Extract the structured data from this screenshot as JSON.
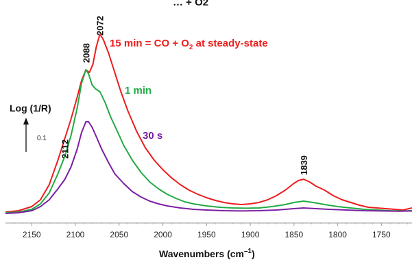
{
  "chart_data": {
    "type": "line",
    "title_partial": "… + O2",
    "xlabel": "Wavenumbers (cm",
    "xlabel_sup": "–1",
    "xlabel_close": ")",
    "ylabel": "Log (1/R)",
    "scalebar_label": "0.1",
    "xlim": [
      2180,
      1715
    ],
    "x_reversed": true,
    "grid": false,
    "ticks": [
      2150,
      2100,
      2050,
      2000,
      1950,
      1900,
      1850,
      1800,
      1750
    ],
    "tick_labels": [
      "2150",
      "2100",
      "2050",
      "2000",
      "1950",
      "1900",
      "1850",
      "1800",
      "1750"
    ],
    "series": [
      {
        "name": "15 min = CO + O2 at steady-state",
        "color": "#ee1c1c",
        "points": [
          [
            2180,
            0.04
          ],
          [
            2165,
            0.05
          ],
          [
            2150,
            0.08
          ],
          [
            2140,
            0.13
          ],
          [
            2130,
            0.24
          ],
          [
            2120,
            0.42
          ],
          [
            2112,
            0.58
          ],
          [
            2105,
            0.72
          ],
          [
            2098,
            0.88
          ],
          [
            2093,
            1.0
          ],
          [
            2088,
            1.08
          ],
          [
            2084,
            1.06
          ],
          [
            2080,
            1.12
          ],
          [
            2076,
            1.25
          ],
          [
            2072,
            1.34
          ],
          [
            2068,
            1.3
          ],
          [
            2062,
            1.2
          ],
          [
            2055,
            1.06
          ],
          [
            2048,
            0.92
          ],
          [
            2040,
            0.78
          ],
          [
            2030,
            0.63
          ],
          [
            2020,
            0.51
          ],
          [
            2010,
            0.42
          ],
          [
            2000,
            0.35
          ],
          [
            1990,
            0.29
          ],
          [
            1980,
            0.24
          ],
          [
            1970,
            0.2
          ],
          [
            1960,
            0.17
          ],
          [
            1950,
            0.145
          ],
          [
            1940,
            0.125
          ],
          [
            1930,
            0.11
          ],
          [
            1920,
            0.1
          ],
          [
            1910,
            0.095
          ],
          [
            1900,
            0.1
          ],
          [
            1890,
            0.11
          ],
          [
            1880,
            0.13
          ],
          [
            1870,
            0.16
          ],
          [
            1860,
            0.2
          ],
          [
            1850,
            0.25
          ],
          [
            1845,
            0.27
          ],
          [
            1839,
            0.28
          ],
          [
            1832,
            0.26
          ],
          [
            1825,
            0.23
          ],
          [
            1815,
            0.2
          ],
          [
            1805,
            0.16
          ],
          [
            1795,
            0.13
          ],
          [
            1785,
            0.11
          ],
          [
            1775,
            0.09
          ],
          [
            1765,
            0.075
          ],
          [
            1755,
            0.07
          ],
          [
            1745,
            0.065
          ],
          [
            1735,
            0.06
          ],
          [
            1725,
            0.055
          ],
          [
            1715,
            0.07
          ]
        ]
      },
      {
        "name": "1 min",
        "color": "#22aa44",
        "points": [
          [
            2180,
            0.035
          ],
          [
            2165,
            0.04
          ],
          [
            2150,
            0.06
          ],
          [
            2140,
            0.1
          ],
          [
            2130,
            0.18
          ],
          [
            2120,
            0.32
          ],
          [
            2112,
            0.45
          ],
          [
            2105,
            0.6
          ],
          [
            2098,
            0.8
          ],
          [
            2093,
            0.98
          ],
          [
            2088,
            1.08
          ],
          [
            2085,
            1.05
          ],
          [
            2081,
            0.97
          ],
          [
            2077,
            0.94
          ],
          [
            2072,
            0.92
          ],
          [
            2066,
            0.84
          ],
          [
            2060,
            0.74
          ],
          [
            2052,
            0.63
          ],
          [
            2045,
            0.53
          ],
          [
            2035,
            0.42
          ],
          [
            2025,
            0.33
          ],
          [
            2015,
            0.26
          ],
          [
            2005,
            0.21
          ],
          [
            1995,
            0.17
          ],
          [
            1985,
            0.14
          ],
          [
            1975,
            0.115
          ],
          [
            1965,
            0.1
          ],
          [
            1950,
            0.085
          ],
          [
            1935,
            0.075
          ],
          [
            1920,
            0.07
          ],
          [
            1905,
            0.068
          ],
          [
            1890,
            0.07
          ],
          [
            1875,
            0.08
          ],
          [
            1860,
            0.095
          ],
          [
            1850,
            0.11
          ],
          [
            1839,
            0.12
          ],
          [
            1828,
            0.11
          ],
          [
            1815,
            0.095
          ],
          [
            1800,
            0.08
          ],
          [
            1785,
            0.07
          ],
          [
            1770,
            0.06
          ],
          [
            1755,
            0.055
          ],
          [
            1740,
            0.05
          ],
          [
            1725,
            0.048
          ],
          [
            1715,
            0.05
          ]
        ]
      },
      {
        "name": "30 s",
        "color": "#7b1fa2",
        "points": [
          [
            2180,
            0.03
          ],
          [
            2165,
            0.035
          ],
          [
            2150,
            0.05
          ],
          [
            2140,
            0.08
          ],
          [
            2130,
            0.13
          ],
          [
            2120,
            0.21
          ],
          [
            2112,
            0.28
          ],
          [
            2105,
            0.37
          ],
          [
            2098,
            0.5
          ],
          [
            2093,
            0.62
          ],
          [
            2088,
            0.7
          ],
          [
            2085,
            0.7
          ],
          [
            2081,
            0.66
          ],
          [
            2076,
            0.59
          ],
          [
            2070,
            0.5
          ],
          [
            2062,
            0.4
          ],
          [
            2055,
            0.32
          ],
          [
            2045,
            0.25
          ],
          [
            2035,
            0.19
          ],
          [
            2025,
            0.15
          ],
          [
            2015,
            0.12
          ],
          [
            2005,
            0.1
          ],
          [
            1995,
            0.085
          ],
          [
            1980,
            0.07
          ],
          [
            1965,
            0.06
          ],
          [
            1950,
            0.055
          ],
          [
            1930,
            0.05
          ],
          [
            1910,
            0.048
          ],
          [
            1890,
            0.05
          ],
          [
            1870,
            0.055
          ],
          [
            1850,
            0.065
          ],
          [
            1839,
            0.07
          ],
          [
            1825,
            0.065
          ],
          [
            1810,
            0.06
          ],
          [
            1790,
            0.055
          ],
          [
            1770,
            0.05
          ],
          [
            1750,
            0.048
          ],
          [
            1730,
            0.046
          ],
          [
            1715,
            0.048
          ]
        ]
      }
    ],
    "annotations": [
      {
        "text": "2072",
        "x": 2072
      },
      {
        "text": "2088",
        "x": 2088
      },
      {
        "text": "2112",
        "x": 2112
      },
      {
        "text": "1839",
        "x": 1839
      }
    ],
    "legend_labels": {
      "red_prefix": "15 min = CO + O",
      "red_sub": "2",
      "red_suffix": " at steady-state",
      "green": "1 min",
      "purple": "30 s"
    }
  }
}
